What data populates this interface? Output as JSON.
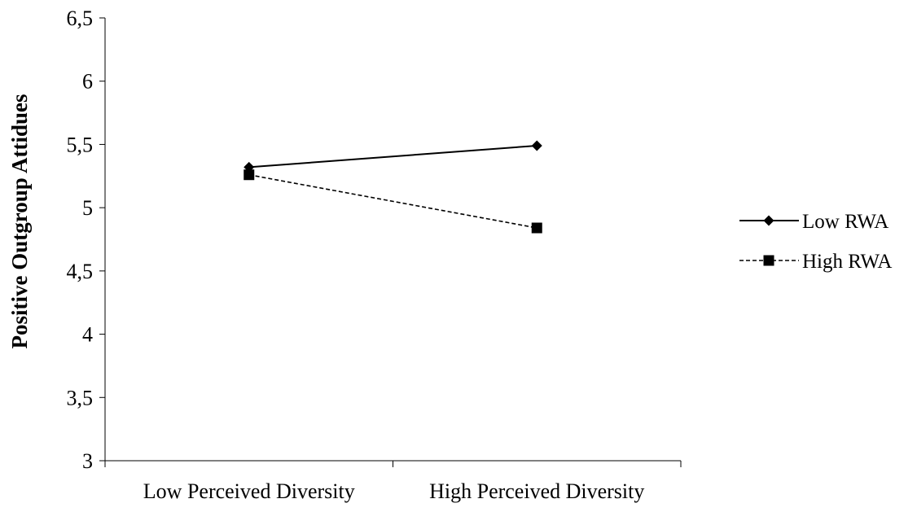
{
  "chart_data": {
    "type": "line",
    "title": "",
    "xlabel": "",
    "ylabel": "Positive Outgroup Attidues",
    "categories": [
      "Low Perceived Diversity",
      "High Perceived Diversity"
    ],
    "ylim": [
      3,
      6.5
    ],
    "yticks": [
      3,
      3.5,
      4,
      4.5,
      5,
      5.5,
      6,
      6.5
    ],
    "ytick_labels": [
      "3",
      "3,5",
      "4",
      "4,5",
      "5",
      "5,5",
      "6",
      "6,5"
    ],
    "grid": false,
    "legend_position": "right",
    "series": [
      {
        "name": "Low RWA",
        "values": [
          5.32,
          5.49
        ],
        "marker": "diamond",
        "line_style": "solid",
        "color": "#000000"
      },
      {
        "name": "High RWA",
        "values": [
          5.26,
          4.84
        ],
        "marker": "square",
        "line_style": "dashed",
        "color": "#000000"
      }
    ]
  }
}
